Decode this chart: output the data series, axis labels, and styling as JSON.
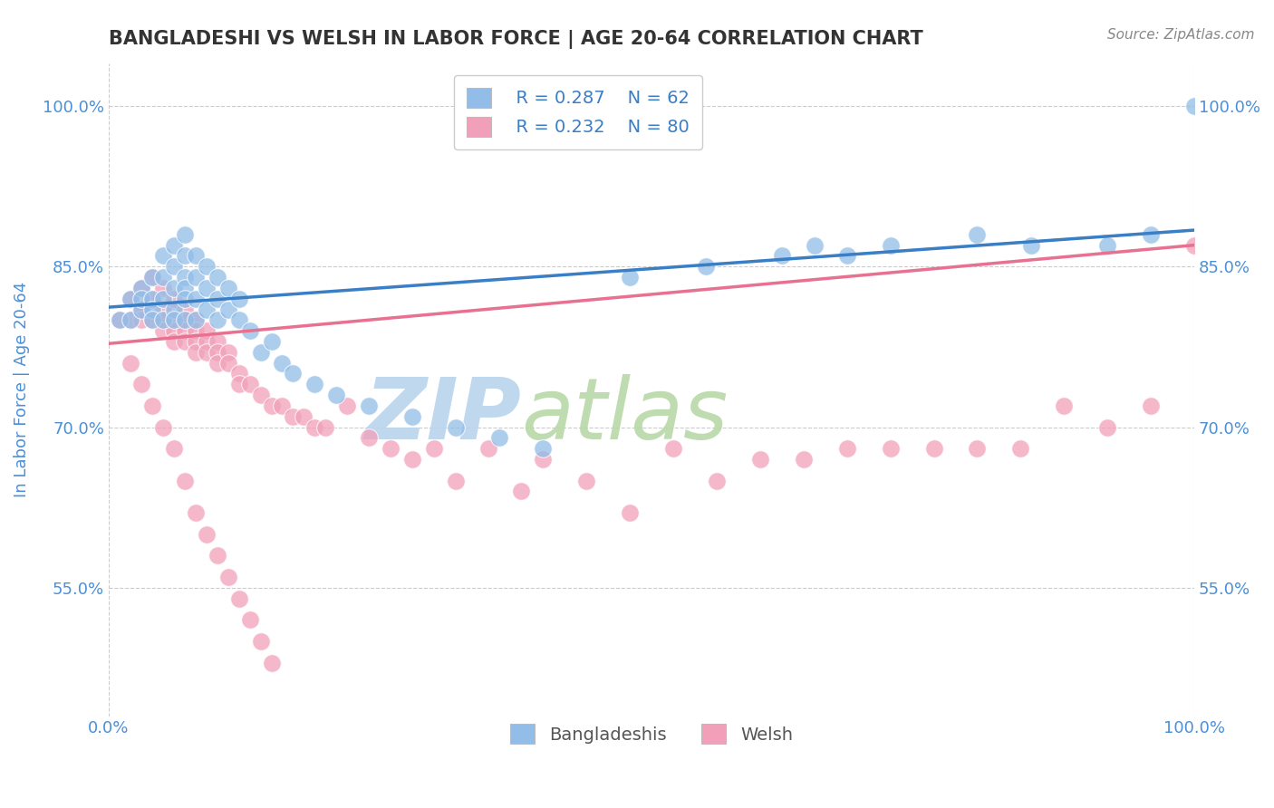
{
  "title": "BANGLADESHI VS WELSH IN LABOR FORCE | AGE 20-64 CORRELATION CHART",
  "source_text": "Source: ZipAtlas.com",
  "ylabel": "In Labor Force | Age 20-64",
  "xlim": [
    0.0,
    1.0
  ],
  "ylim": [
    0.43,
    1.04
  ],
  "x_tick_labels": [
    "0.0%",
    "100.0%"
  ],
  "y_tick_labels": [
    "55.0%",
    "70.0%",
    "85.0%",
    "100.0%"
  ],
  "y_tick_positions": [
    0.55,
    0.7,
    0.85,
    1.0
  ],
  "legend_r_blue": "R = 0.287",
  "legend_n_blue": "N = 62",
  "legend_r_pink": "R = 0.232",
  "legend_n_pink": "N = 80",
  "legend_label_blue": "Bangladeshis",
  "legend_label_pink": "Welsh",
  "blue_color": "#92BDE8",
  "pink_color": "#F2A0BA",
  "blue_line_color": "#3A7EC6",
  "pink_line_color": "#E87090",
  "dashed_line_color": "#AAAAAA",
  "watermark_zip_color": "#C8DCF0",
  "watermark_atlas_color": "#D8E8A0",
  "title_color": "#333333",
  "axis_label_color": "#4A90D9",
  "tick_label_color": "#4A90D9",
  "blue_scatter_x": [
    0.01,
    0.02,
    0.02,
    0.03,
    0.03,
    0.03,
    0.04,
    0.04,
    0.04,
    0.04,
    0.05,
    0.05,
    0.05,
    0.05,
    0.06,
    0.06,
    0.06,
    0.06,
    0.06,
    0.07,
    0.07,
    0.07,
    0.07,
    0.07,
    0.07,
    0.08,
    0.08,
    0.08,
    0.08,
    0.09,
    0.09,
    0.09,
    0.1,
    0.1,
    0.1,
    0.11,
    0.11,
    0.12,
    0.12,
    0.13,
    0.14,
    0.15,
    0.16,
    0.17,
    0.19,
    0.21,
    0.24,
    0.28,
    0.32,
    0.36,
    0.4,
    0.48,
    0.55,
    0.62,
    0.65,
    0.68,
    0.72,
    0.8,
    0.85,
    0.92,
    0.96,
    1.0
  ],
  "blue_scatter_y": [
    0.8,
    0.82,
    0.8,
    0.83,
    0.81,
    0.82,
    0.84,
    0.82,
    0.81,
    0.8,
    0.86,
    0.84,
    0.82,
    0.8,
    0.87,
    0.85,
    0.83,
    0.81,
    0.8,
    0.88,
    0.86,
    0.84,
    0.83,
    0.82,
    0.8,
    0.86,
    0.84,
    0.82,
    0.8,
    0.85,
    0.83,
    0.81,
    0.84,
    0.82,
    0.8,
    0.83,
    0.81,
    0.82,
    0.8,
    0.79,
    0.77,
    0.78,
    0.76,
    0.75,
    0.74,
    0.73,
    0.72,
    0.71,
    0.7,
    0.69,
    0.68,
    0.84,
    0.85,
    0.86,
    0.87,
    0.86,
    0.87,
    0.88,
    0.87,
    0.87,
    0.88,
    1.0
  ],
  "pink_scatter_x": [
    0.01,
    0.02,
    0.02,
    0.03,
    0.03,
    0.03,
    0.04,
    0.04,
    0.04,
    0.05,
    0.05,
    0.05,
    0.05,
    0.06,
    0.06,
    0.06,
    0.06,
    0.07,
    0.07,
    0.07,
    0.07,
    0.08,
    0.08,
    0.08,
    0.08,
    0.09,
    0.09,
    0.09,
    0.1,
    0.1,
    0.1,
    0.11,
    0.11,
    0.12,
    0.12,
    0.13,
    0.14,
    0.15,
    0.16,
    0.17,
    0.18,
    0.19,
    0.2,
    0.22,
    0.24,
    0.26,
    0.28,
    0.3,
    0.32,
    0.35,
    0.38,
    0.4,
    0.44,
    0.48,
    0.52,
    0.56,
    0.6,
    0.64,
    0.68,
    0.72,
    0.76,
    0.8,
    0.84,
    0.88,
    0.92,
    0.96,
    1.0,
    0.02,
    0.03,
    0.04,
    0.05,
    0.06,
    0.07,
    0.08,
    0.09,
    0.1,
    0.11,
    0.12,
    0.13,
    0.14,
    0.15
  ],
  "pink_scatter_y": [
    0.8,
    0.82,
    0.8,
    0.83,
    0.81,
    0.8,
    0.84,
    0.82,
    0.8,
    0.83,
    0.81,
    0.8,
    0.79,
    0.82,
    0.8,
    0.79,
    0.78,
    0.81,
    0.8,
    0.79,
    0.78,
    0.8,
    0.79,
    0.78,
    0.77,
    0.79,
    0.78,
    0.77,
    0.78,
    0.77,
    0.76,
    0.77,
    0.76,
    0.75,
    0.74,
    0.74,
    0.73,
    0.72,
    0.72,
    0.71,
    0.71,
    0.7,
    0.7,
    0.72,
    0.69,
    0.68,
    0.67,
    0.68,
    0.65,
    0.68,
    0.64,
    0.67,
    0.65,
    0.62,
    0.68,
    0.65,
    0.67,
    0.67,
    0.68,
    0.68,
    0.68,
    0.68,
    0.68,
    0.72,
    0.7,
    0.72,
    0.87,
    0.76,
    0.74,
    0.72,
    0.7,
    0.68,
    0.65,
    0.62,
    0.6,
    0.58,
    0.56,
    0.54,
    0.52,
    0.5,
    0.48
  ]
}
